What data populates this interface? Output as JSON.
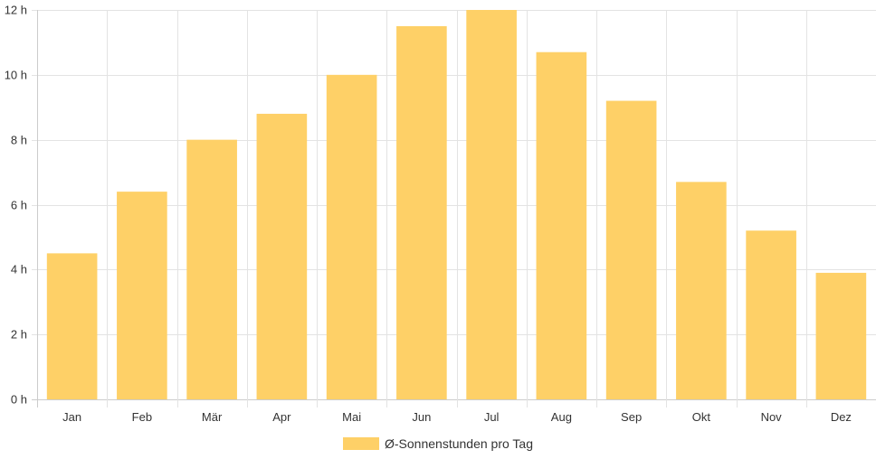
{
  "chart_data": {
    "type": "bar",
    "categories": [
      "Jan",
      "Feb",
      "Mär",
      "Apr",
      "Mai",
      "Jun",
      "Jul",
      "Aug",
      "Sep",
      "Okt",
      "Nov",
      "Dez"
    ],
    "series": [
      {
        "name": "Ø-Sonnenstunden pro Tag",
        "values": [
          4.5,
          6.4,
          8.0,
          8.8,
          10.0,
          11.5,
          12.0,
          10.7,
          9.2,
          6.7,
          5.2,
          3.9
        ]
      }
    ],
    "ylim": [
      0,
      12
    ],
    "yticks": [
      0,
      2,
      4,
      6,
      8,
      10,
      12
    ],
    "ytick_labels": [
      "0 h",
      "2 h",
      "4 h",
      "6 h",
      "8 h",
      "10 h",
      "12 h"
    ],
    "grid": true,
    "legend_position": "bottom",
    "colors": {
      "bar": "#fed067",
      "grid": "#e3e3e3",
      "axis": "#cccccc",
      "text": "#333333"
    }
  }
}
